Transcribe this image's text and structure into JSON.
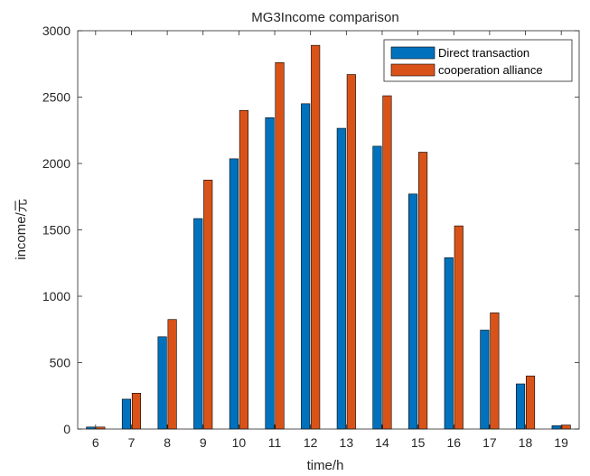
{
  "chart_data": {
    "type": "bar",
    "title": "MG3Income comparison",
    "xlabel": "time/h",
    "ylabel": "income/元",
    "categories": [
      "6",
      "7",
      "8",
      "9",
      "10",
      "11",
      "12",
      "13",
      "14",
      "15",
      "16",
      "17",
      "18",
      "19"
    ],
    "yticks": [
      "0",
      "500",
      "1000",
      "1500",
      "2000",
      "2500",
      "3000"
    ],
    "ylim": [
      0,
      3000
    ],
    "grid": false,
    "legend_position": "top-right",
    "series": [
      {
        "name": "Direct transaction",
        "color": "#0072BD",
        "values": [
          15,
          225,
          695,
          1585,
          2035,
          2345,
          2450,
          2265,
          2130,
          1770,
          1290,
          745,
          340,
          25
        ]
      },
      {
        "name": "cooperation alliance",
        "color": "#D95319",
        "values": [
          15,
          270,
          825,
          1875,
          2400,
          2760,
          2890,
          2670,
          2510,
          2085,
          1530,
          875,
          400,
          30
        ]
      }
    ]
  }
}
